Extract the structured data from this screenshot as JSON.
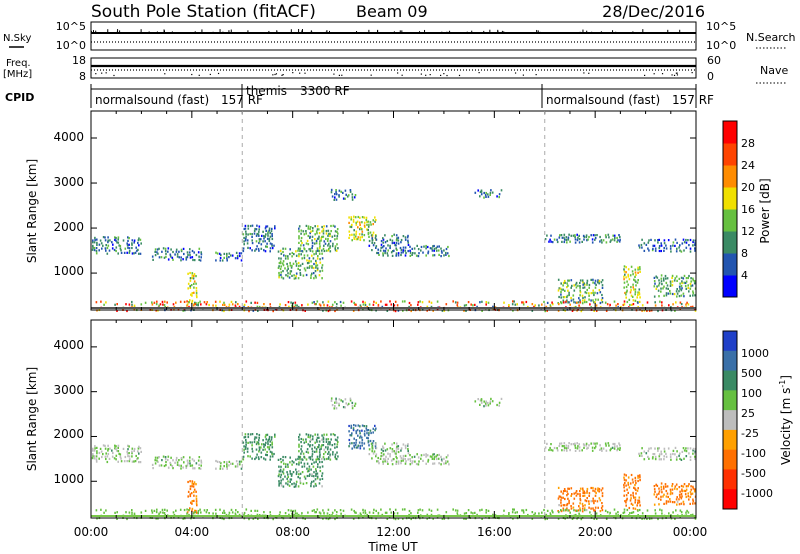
{
  "header": {
    "station": "South Pole Station (fitACF)",
    "beam": "Beam 09",
    "date": "28/Dec/2016"
  },
  "top_panels": {
    "nsky": {
      "label": "N.Sky",
      "ticks": [
        "10^5",
        "10^0"
      ]
    },
    "nsearch": {
      "label": "N.Search",
      "ticks": [
        "10^5",
        "10^0"
      ]
    },
    "freq": {
      "label_line1": "Freq.",
      "label_line2": "[MHz]",
      "ticks": [
        "18",
        "8"
      ]
    },
    "nave": {
      "label": "Nave",
      "ticks": [
        "60",
        "0"
      ]
    },
    "cpid": {
      "label": "CPID"
    }
  },
  "modes": [
    {
      "name": "normalsound (fast)",
      "rf": "157 RF",
      "start_hour": 0
    },
    {
      "name": "themis",
      "rf": "3300 RF",
      "start_hour": 6
    },
    {
      "name": "normalsound (fast)",
      "rf": "157 RF",
      "start_hour": 18
    }
  ],
  "x_axis": {
    "label": "Time UT",
    "range_hours": [
      0,
      24
    ],
    "ticks": [
      "00:00",
      "04:00",
      "08:00",
      "12:00",
      "16:00",
      "20:00",
      "00:00"
    ]
  },
  "y_axis": {
    "label": "Slant Range [km]",
    "range_km": [
      180,
      4600
    ],
    "ticks": [
      "1000",
      "2000",
      "3000",
      "4000"
    ]
  },
  "power_colorbar": {
    "label": "Power [dB]",
    "ticks": [
      "4",
      "8",
      "12",
      "16",
      "20",
      "24",
      "28"
    ],
    "range": [
      0,
      30
    ],
    "colors": [
      "#0000ff",
      "#2255b0",
      "#3a8a64",
      "#66c040",
      "#f0e000",
      "#ff8c00",
      "#ff4400",
      "#ff0000"
    ]
  },
  "velocity_colorbar": {
    "label": "Velocity [m s",
    "label_sup": "-1",
    "label_end": "]",
    "ticks": [
      "1000",
      "500",
      "100",
      "25",
      "-25",
      "-100",
      "-500",
      "-1000"
    ],
    "colors": [
      "#2040c8",
      "#3a70a8",
      "#3a8a64",
      "#66c040",
      "#bdbdbd",
      "#ffa000",
      "#ff7000",
      "#ff3000",
      "#ff0000"
    ]
  },
  "chart_data": {
    "type": "heatmap",
    "title": "South Pole Station (fitACF)",
    "xlabel": "Time UT",
    "ylabel": "Slant Range [km]",
    "xlim_hours": [
      0,
      24
    ],
    "ylim_km": [
      180,
      4600
    ],
    "panels": [
      "Power [dB]",
      "Velocity [m s-1]"
    ],
    "scatter_regions": [
      {
        "t0": 0.0,
        "t1": 2.0,
        "r0": 1450,
        "r1": 1850,
        "power": 8,
        "velocity": 25
      },
      {
        "t0": 2.4,
        "t1": 4.4,
        "r0": 1300,
        "r1": 1600,
        "power": 8,
        "velocity": 25
      },
      {
        "t0": 3.8,
        "t1": 4.2,
        "r0": 300,
        "r1": 1050,
        "power": 16,
        "velocity": -100
      },
      {
        "t0": 4.9,
        "t1": 6.0,
        "r0": 1300,
        "r1": 1500,
        "power": 8,
        "velocity": 25
      },
      {
        "t0": 6.0,
        "t1": 7.3,
        "r0": 1500,
        "r1": 2100,
        "power": 8,
        "velocity": 100
      },
      {
        "t0": 7.4,
        "t1": 9.2,
        "r0": 900,
        "r1": 1600,
        "power": 12,
        "velocity": 100
      },
      {
        "t0": 8.2,
        "t1": 9.8,
        "r0": 1500,
        "r1": 2100,
        "power": 12,
        "velocity": 100
      },
      {
        "t0": 9.5,
        "t1": 10.5,
        "r0": 2650,
        "r1": 2900,
        "power": 8,
        "velocity": 25
      },
      {
        "t0": 10.2,
        "t1": 11.3,
        "r0": 1750,
        "r1": 2300,
        "power": 16,
        "velocity": 500
      },
      {
        "t0": 11.0,
        "t1": 12.6,
        "r0": 1400,
        "r1": 1900,
        "power": 8,
        "velocity": 25
      },
      {
        "t0": 12.6,
        "t1": 14.2,
        "r0": 1400,
        "r1": 1650,
        "power": 8,
        "velocity": 25
      },
      {
        "t0": 15.2,
        "t1": 16.3,
        "r0": 2700,
        "r1": 2900,
        "power": 8,
        "velocity": 25
      },
      {
        "t0": 18.0,
        "t1": 21.0,
        "r0": 1700,
        "r1": 1900,
        "power": 8,
        "velocity": 25
      },
      {
        "t0": 18.5,
        "t1": 20.3,
        "r0": 350,
        "r1": 900,
        "power": 12,
        "velocity": -100
      },
      {
        "t0": 21.1,
        "t1": 21.8,
        "r0": 350,
        "r1": 1200,
        "power": 16,
        "velocity": -100
      },
      {
        "t0": 21.7,
        "t1": 24.0,
        "r0": 1500,
        "r1": 1800,
        "power": 8,
        "velocity": 25
      },
      {
        "t0": 22.3,
        "t1": 24.0,
        "r0": 500,
        "r1": 1000,
        "power": 12,
        "velocity": -100
      },
      {
        "t0": 0.0,
        "t1": 24.0,
        "r0": 180,
        "r1": 420,
        "power": 20,
        "velocity": 25
      }
    ]
  }
}
